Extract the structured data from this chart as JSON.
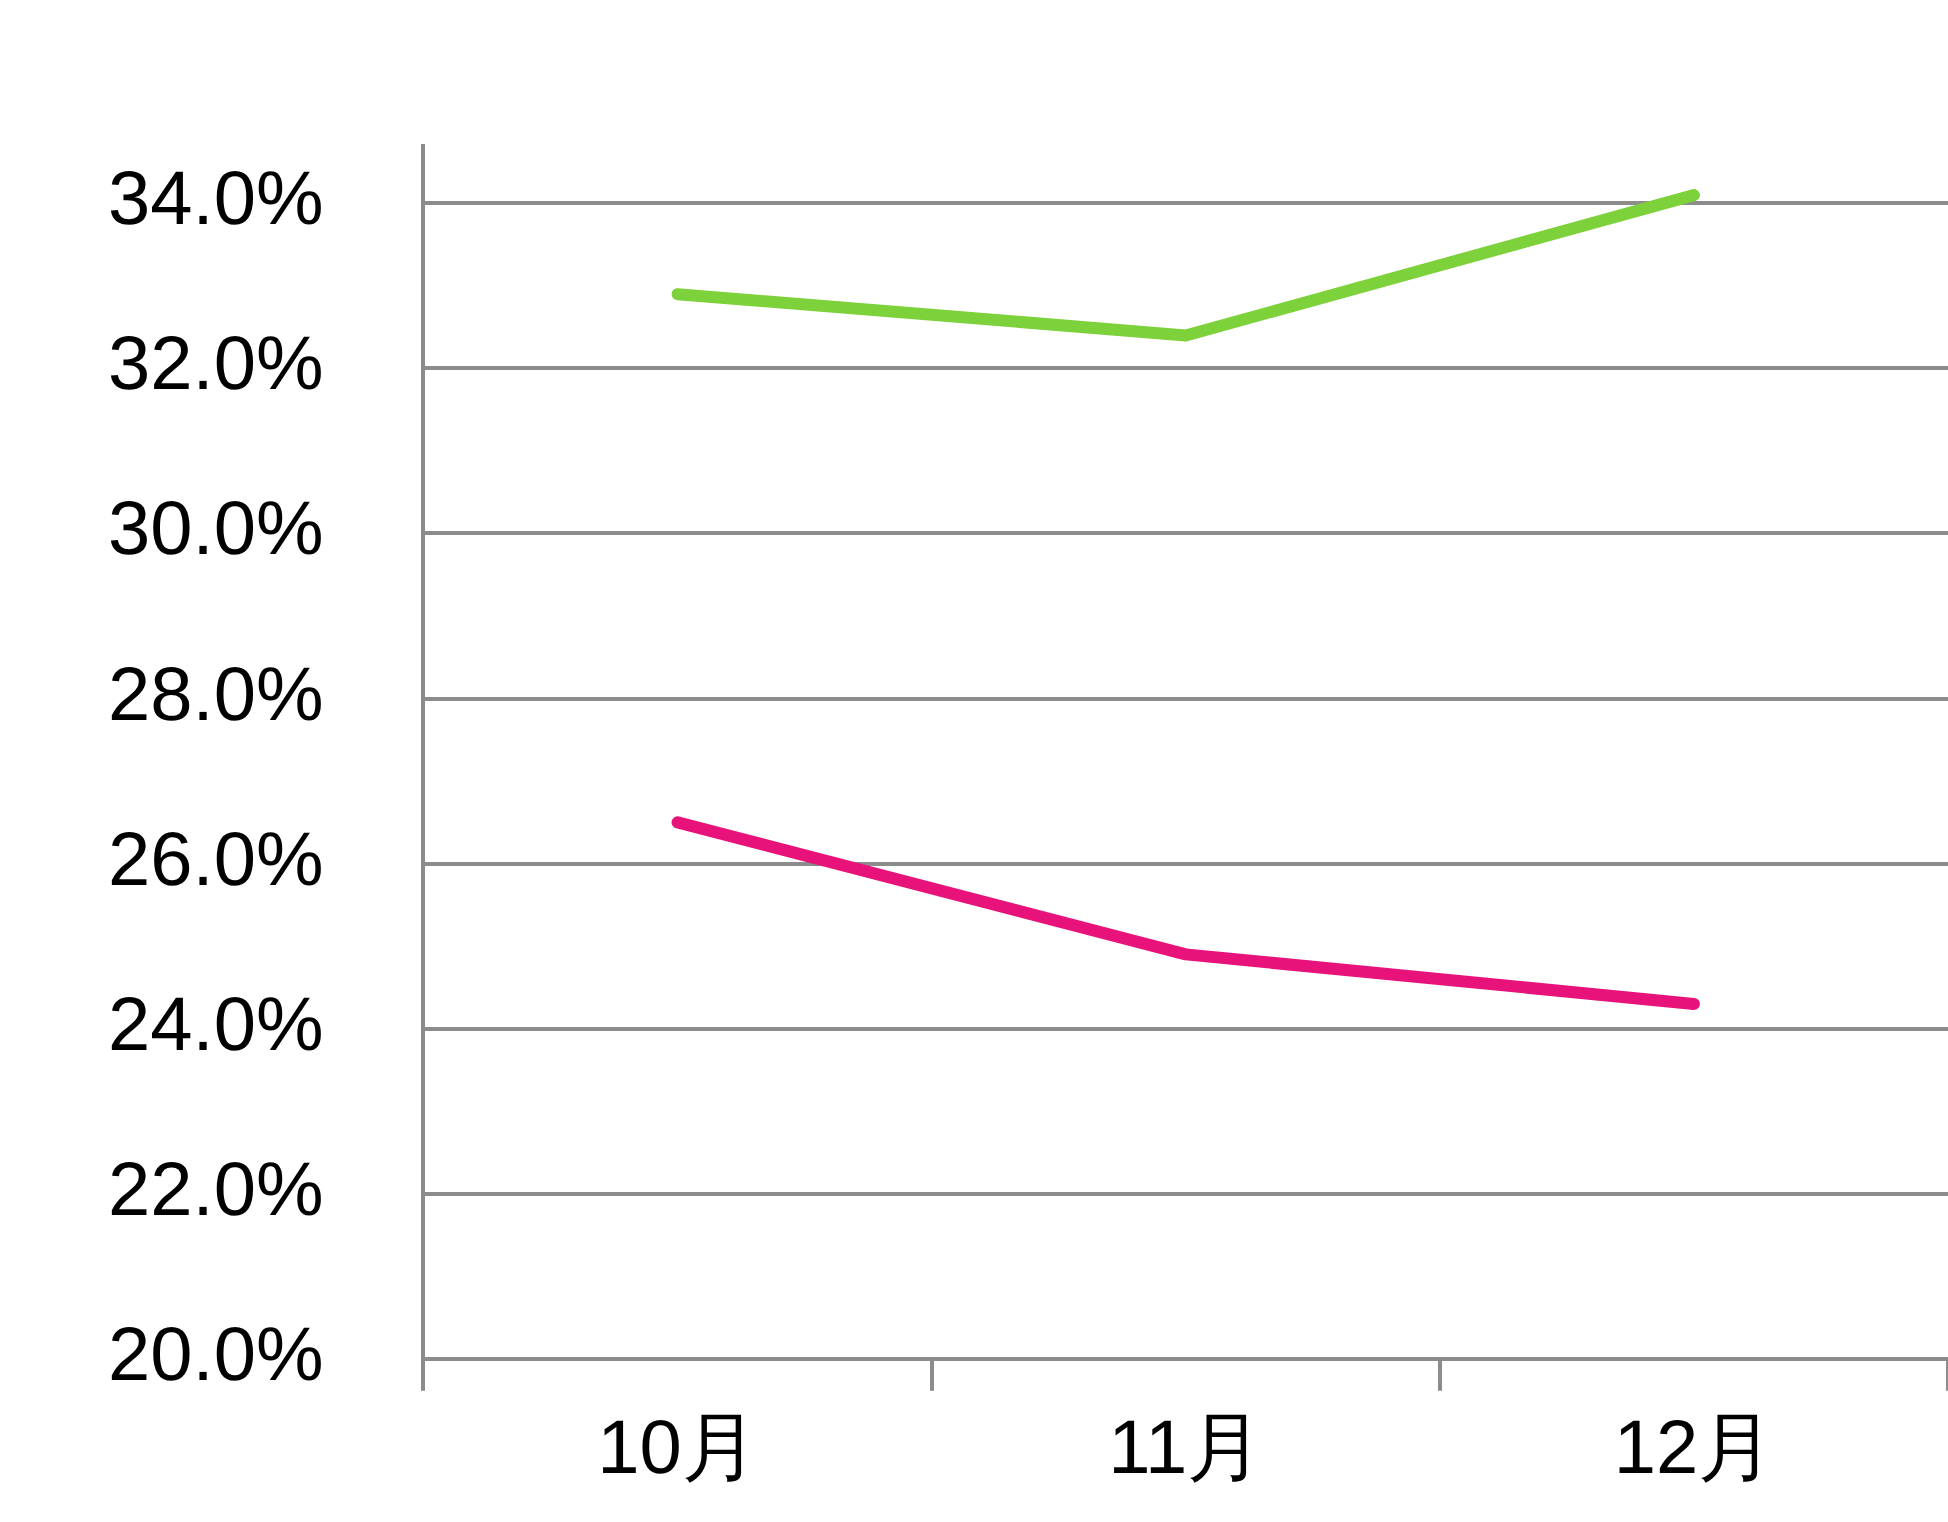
{
  "chart_data": {
    "type": "line",
    "categories": [
      "10月",
      "11月",
      "12月"
    ],
    "series": [
      {
        "color": "#7dd13a",
        "values": [
          32.9,
          32.4,
          34.1
        ]
      },
      {
        "color": "#e8137a",
        "values": [
          26.5,
          24.9,
          24.3
        ]
      }
    ],
    "ylim": [
      20,
      34.7
    ],
    "yticks": [
      {
        "value": 20,
        "label": "20.0%"
      },
      {
        "value": 22,
        "label": "22.0%"
      },
      {
        "value": 24,
        "label": "24.0%"
      },
      {
        "value": 26,
        "label": "26.0%"
      },
      {
        "value": 28,
        "label": "28.0%"
      },
      {
        "value": 30,
        "label": "30.0%"
      },
      {
        "value": 32,
        "label": "32.0%"
      },
      {
        "value": 34,
        "label": "34.0%"
      }
    ],
    "grid": "y",
    "legend": false,
    "marker": "none",
    "line_style": "solid"
  }
}
